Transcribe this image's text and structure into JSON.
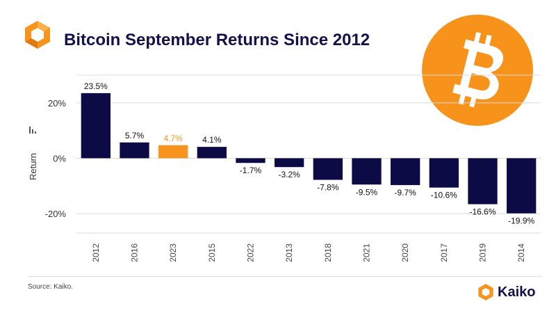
{
  "header": {
    "title": "Bitcoin September Returns Since 2012",
    "logo_icon": "kaiko-logo-icon",
    "coin_icon": "bitcoin-icon"
  },
  "colors": {
    "bar_default": "#0c0b45",
    "bar_highlight": "#f7941d",
    "title": "#12114a",
    "grid": "#d9d9d9",
    "bitcoin_orange": "#f7931a"
  },
  "chart_data": {
    "type": "bar",
    "categories": [
      "2012",
      "2016",
      "2023",
      "2015",
      "2022",
      "2013",
      "2018",
      "2021",
      "2020",
      "2017",
      "2019",
      "2014"
    ],
    "values": [
      23.5,
      5.7,
      4.7,
      4.1,
      -1.7,
      -3.2,
      -7.8,
      -9.5,
      -9.7,
      -10.6,
      -16.6,
      -19.9
    ],
    "data_labels": [
      "23.5%",
      "5.7%",
      "4.7%",
      "4.1%",
      "-1.7%",
      "-3.2%",
      "-7.8%",
      "-9.5%",
      "-9.7%",
      "-10.6%",
      "-16.6%",
      "-19.9%"
    ],
    "highlight_category": "2023",
    "ylabel": "Return",
    "yticks": [
      20,
      0,
      -20
    ],
    "ytick_labels": [
      "20%",
      "0%",
      "-20%"
    ],
    "ylim": [
      -27,
      30
    ],
    "grid": true
  },
  "footer": {
    "source": "Source: Kaiko.",
    "brand": "Kaiko"
  }
}
